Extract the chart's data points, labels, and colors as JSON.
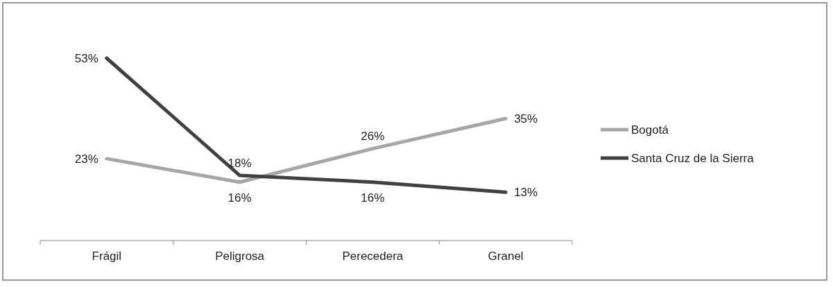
{
  "chart_data": {
    "type": "line",
    "categories": [
      "Frágil",
      "Peligrosa",
      "Perecedera",
      "Granel"
    ],
    "series": [
      {
        "name": "Bogotá",
        "color": "#a6a6a6",
        "values": [
          23,
          16,
          26,
          35
        ],
        "value_labels": [
          "23%",
          "16%",
          "26%",
          "35%"
        ]
      },
      {
        "name": "Santa Cruz de la Sierra",
        "color": "#404040",
        "values": [
          53,
          18,
          16,
          13
        ],
        "value_labels": [
          "53%",
          "18%",
          "16%",
          "13%"
        ]
      }
    ],
    "legend": "right",
    "marker": "none",
    "line_style": "solid",
    "grid": false
  }
}
